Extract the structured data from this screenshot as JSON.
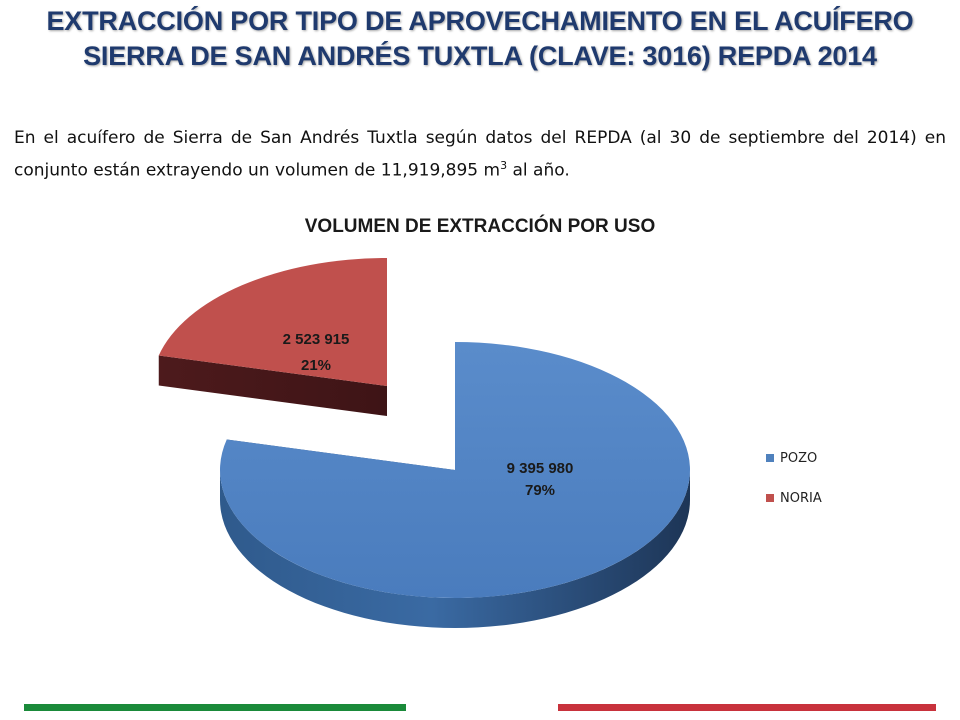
{
  "slide": {
    "title_line1": "EXTRACCIÓN POR TIPO DE APROVECHAMIENTO EN EL ACUÍFERO",
    "title_line2": "SIERRA DE SAN ANDRÉS TUXTLA (CLAVE: 3016) REPDA 2014",
    "intro_main": "En el acuífero de Sierra de San Andrés Tuxtla según datos del REPDA (al 30 de septiembre del 2014) en conjunto están extrayendo un volumen de 11,919,895 m",
    "intro_sup": "3",
    "intro_tail": " al año."
  },
  "colors": {
    "title": "#1f3a6e",
    "pozo": "#4f81bd",
    "noria": "#c0504d",
    "green_bar": "#1a8a3a",
    "red_bar": "#c8323c"
  },
  "chart_data": {
    "type": "pie",
    "title": "VOLUMEN DE EXTRACCIÓN POR USO",
    "categories": [
      "POZO",
      "NORIA"
    ],
    "values": [
      9395980,
      2523915
    ],
    "percents": [
      79,
      21
    ],
    "value_labels": [
      "9 395 980",
      "2 523 915"
    ],
    "percent_labels": [
      "79%",
      "21%"
    ],
    "colors": [
      "#4f81bd",
      "#c0504d"
    ],
    "exploded": [
      "NORIA"
    ],
    "legend_position": "right",
    "style": "3d"
  }
}
